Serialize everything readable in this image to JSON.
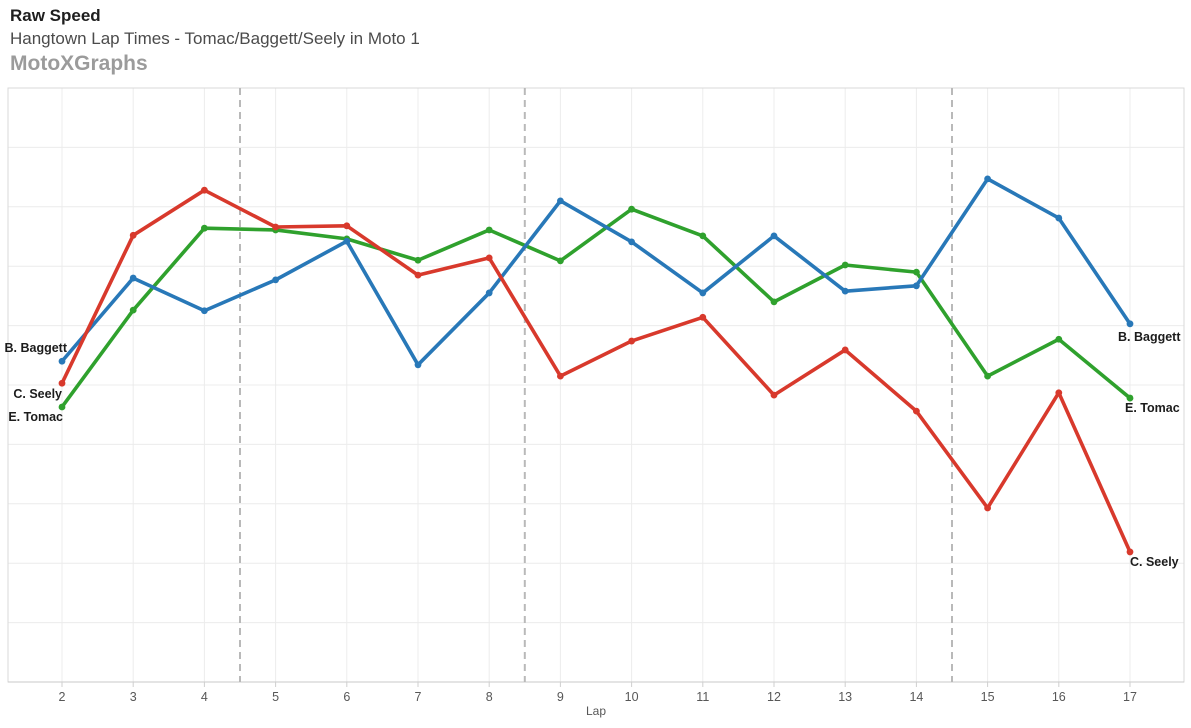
{
  "header": {
    "title": "Raw Speed",
    "subtitle": "Hangtown Lap Times - Tomac/Baggett/Seely in Moto 1",
    "brand": "MotoXGraphs"
  },
  "colors": {
    "title_text": "#1e1e1e",
    "subtitle_text": "#4b4b4b",
    "brand_text": "#9b9b9b",
    "gridline": "#ececec",
    "plot_border": "#d9d9d9",
    "axis_line": "#c9c9c9",
    "tick_mark": "#cfcfcf",
    "tick_text": "#575757",
    "dashed_line": "#b9b9b9",
    "series_blue": "#2878B8",
    "series_red": "#D8392C",
    "series_green": "#2FA12D"
  },
  "chart_data": {
    "type": "line",
    "title": "Raw Speed",
    "subtitle": "Hangtown Lap Times - Tomac/Baggett/Seely in Moto 1",
    "xlabel": "Lap",
    "ylabel": "",
    "x": [
      2,
      3,
      4,
      5,
      6,
      7,
      8,
      9,
      10,
      11,
      12,
      13,
      14,
      15,
      16,
      17
    ],
    "ylim": [
      0,
      10
    ],
    "y_tick_labels_visible": false,
    "grid": true,
    "legend_position": "line-ends",
    "dashed_vlines_at_x": [
      4.5,
      8.5,
      14.5
    ],
    "series": [
      {
        "name": "B. Baggett",
        "color": "#2878B8",
        "values": [
          5.4,
          6.8,
          6.25,
          6.77,
          7.42,
          5.34,
          6.55,
          8.1,
          7.41,
          6.55,
          7.51,
          6.58,
          6.67,
          8.47,
          7.81,
          6.03
        ]
      },
      {
        "name": "C. Seely",
        "color": "#D8392C",
        "values": [
          5.03,
          7.52,
          8.28,
          7.66,
          7.68,
          6.85,
          7.14,
          5.15,
          5.74,
          6.14,
          4.83,
          5.59,
          4.56,
          2.93,
          4.87,
          2.19
        ]
      },
      {
        "name": "E. Tomac",
        "color": "#2FA12D",
        "values": [
          4.63,
          6.26,
          7.64,
          7.61,
          7.46,
          7.1,
          7.61,
          7.09,
          7.96,
          7.51,
          6.4,
          7.02,
          6.9,
          5.15,
          5.77,
          4.78
        ]
      }
    ]
  }
}
